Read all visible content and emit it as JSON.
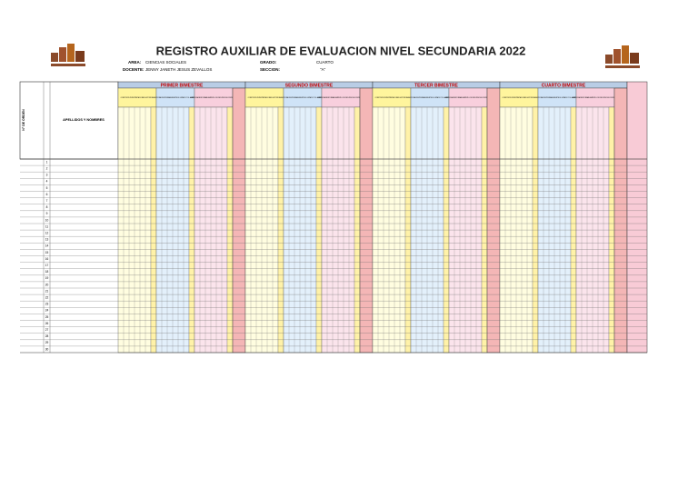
{
  "header": {
    "title": "REGISTRO AUXILIAR DE EVALUACION NIVEL SECUNDARIA 2022",
    "area_label": "AREA:",
    "area": "CIENCIAS SOCIALES",
    "docente_label": "DOCENTE:",
    "docente": "JENNY JANETH JESUS ZEVALLOS",
    "grado_label": "GRADO:",
    "grado": "CUARTO",
    "seccion_label": "SECCION:",
    "seccion": "\"A\""
  },
  "table": {
    "order_header": "N° DE ORDEN",
    "names_header": "APELLIDOS Y NOMBRES",
    "bimestres": [
      "PRIMER BIMESTRE",
      "SEGUNDO BIMESTRE",
      "TERCER BIMESTRE",
      "CUARTO BIMESTRE"
    ],
    "competencias": [
      "CONSTRUYE INTERPRETACIONES HISTÓRICAS",
      "GESTIONA RESPONSABLEMENTE EL ESPACIO Y EL AMBIENTE",
      "GESTIONA RESPONSABLEMENTE LOS RECURSOS ECONÓMICOS"
    ],
    "rows": [
      1,
      2,
      3,
      4,
      5,
      6,
      7,
      8,
      9,
      10,
      11,
      12,
      13,
      14,
      15,
      16,
      17,
      18,
      19,
      20,
      21,
      22,
      23,
      24,
      25,
      26,
      27,
      28,
      29,
      30
    ]
  }
}
